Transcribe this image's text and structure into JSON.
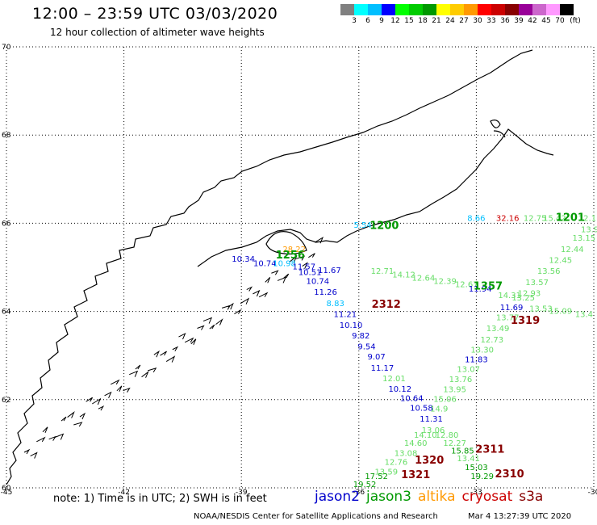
{
  "header": {
    "title": "12:00 – 23:59 UTC 03/03/2020",
    "subtitle": "12 hour collection of altimeter wave heights"
  },
  "scale": {
    "colors": [
      "#808080",
      "#00ffff",
      "#00bfff",
      "#0000ff",
      "#00ff00",
      "#00cc00",
      "#009900",
      "#ffff00",
      "#ffcc00",
      "#ff9900",
      "#ff0000",
      "#cc0000",
      "#880000",
      "#990099",
      "#cc66cc",
      "#ff99ff",
      "#000000"
    ],
    "labels": [
      "3",
      "6",
      "9",
      "12",
      "15",
      "18",
      "21",
      "24",
      "27",
      "30",
      "33",
      "36",
      "39",
      "42",
      "45",
      "70",
      "(ft)"
    ]
  },
  "axes": {
    "lon_labels": [
      "-45",
      "-42",
      "-39",
      "-36",
      "-33",
      "-30"
    ],
    "lat_labels": [
      "70",
      "68",
      "66",
      "64",
      "62",
      "60"
    ]
  },
  "legend": {
    "note": "note:  1) Time is in UTC; 2) SWH is in feet",
    "satellites": [
      {
        "name": "jason2",
        "color": "#0000cc"
      },
      {
        "name": "jason3",
        "color": "#009900"
      },
      {
        "name": "altika",
        "color": "#ff9900"
      },
      {
        "name": "cryosat",
        "color": "#cc0000"
      },
      {
        "name": "s3a",
        "color": "#880000"
      }
    ]
  },
  "footer": {
    "credit": "NOAA/NESDIS Center for Satellite Applications and Research",
    "date": "Mar  4 13:27:39 UTC 2020"
  },
  "map_data": {
    "time_labels": [
      {
        "text": "1200",
        "lon": -35.35,
        "lat": 65.87,
        "color": "#009900"
      },
      {
        "text": "1201",
        "lon": -30.6,
        "lat": 66.05,
        "color": "#009900"
      },
      {
        "text": "1357",
        "lon": -32.7,
        "lat": 64.5,
        "color": "#009900"
      },
      {
        "text": "1256",
        "lon": -37.75,
        "lat": 65.2,
        "color": "#009900"
      },
      {
        "text": "2312",
        "lon": -35.3,
        "lat": 64.08,
        "color": "#880000"
      },
      {
        "text": "1319",
        "lon": -31.75,
        "lat": 63.72,
        "color": "#880000"
      },
      {
        "text": "2311",
        "lon": -32.65,
        "lat": 60.8,
        "color": "#880000"
      },
      {
        "text": "1320",
        "lon": -34.2,
        "lat": 60.55,
        "color": "#880000"
      },
      {
        "text": "2310",
        "lon": -32.15,
        "lat": 60.24,
        "color": "#880000"
      },
      {
        "text": "1321",
        "lon": -34.55,
        "lat": 60.22,
        "color": "#880000"
      }
    ],
    "wave_heights": [
      {
        "v": "5.54",
        "lon": -35.9,
        "lat": 65.9,
        "color": "#00bfff"
      },
      {
        "v": "8.66",
        "lon": -33.0,
        "lat": 66.05,
        "color": "#00bfff"
      },
      {
        "v": "32.16",
        "lon": -32.2,
        "lat": 66.05,
        "color": "#cc0000"
      },
      {
        "v": "12.75",
        "lon": -31.5,
        "lat": 66.05,
        "color": "#66dd66"
      },
      {
        "v": "15.42",
        "lon": -31.0,
        "lat": 66.05,
        "color": "#66dd66"
      },
      {
        "v": "12.11",
        "lon": -30.1,
        "lat": 66.05,
        "color": "#66dd66"
      },
      {
        "v": "10.34",
        "lon": -38.95,
        "lat": 65.13,
        "color": "#0000cc"
      },
      {
        "v": "10.74",
        "lon": -38.4,
        "lat": 65.03,
        "color": "#0000cc"
      },
      {
        "v": "10.98",
        "lon": -37.9,
        "lat": 65.03,
        "color": "#00bfff"
      },
      {
        "v": "28.22",
        "lon": -37.65,
        "lat": 65.35,
        "color": "#ff9900"
      },
      {
        "v": "11.57",
        "lon": -37.4,
        "lat": 64.95,
        "color": "#0000cc"
      },
      {
        "v": "10.51",
        "lon": -37.25,
        "lat": 64.83,
        "color": "#0000cc"
      },
      {
        "v": "11.67",
        "lon": -36.75,
        "lat": 64.87,
        "color": "#0000cc"
      },
      {
        "v": "10.74",
        "lon": -37.05,
        "lat": 64.62,
        "color": "#0000cc"
      },
      {
        "v": "11.26",
        "lon": -36.85,
        "lat": 64.38,
        "color": "#0000cc"
      },
      {
        "v": "8.83",
        "lon": -36.6,
        "lat": 64.12,
        "color": "#00bfff"
      },
      {
        "v": "11.21",
        "lon": -36.35,
        "lat": 63.87,
        "color": "#0000cc"
      },
      {
        "v": "10.10",
        "lon": -36.2,
        "lat": 63.63,
        "color": "#0000cc"
      },
      {
        "v": "9.82",
        "lon": -35.95,
        "lat": 63.39,
        "color": "#0000cc"
      },
      {
        "v": "9.54",
        "lon": -35.8,
        "lat": 63.14,
        "color": "#0000cc"
      },
      {
        "v": "9.07",
        "lon": -35.55,
        "lat": 62.91,
        "color": "#0000cc"
      },
      {
        "v": "11.17",
        "lon": -35.4,
        "lat": 62.66,
        "color": "#0000cc"
      },
      {
        "v": "12.01",
        "lon": -35.1,
        "lat": 62.42,
        "color": "#66dd66"
      },
      {
        "v": "10.12",
        "lon": -34.95,
        "lat": 62.18,
        "color": "#0000cc"
      },
      {
        "v": "10.64",
        "lon": -34.65,
        "lat": 61.97,
        "color": "#0000cc"
      },
      {
        "v": "10.58",
        "lon": -34.4,
        "lat": 61.75,
        "color": "#0000cc"
      },
      {
        "v": "11.31",
        "lon": -34.15,
        "lat": 61.5,
        "color": "#0000cc"
      },
      {
        "v": "12.71",
        "lon": -35.4,
        "lat": 64.85,
        "color": "#66dd66"
      },
      {
        "v": "14.12",
        "lon": -34.85,
        "lat": 64.77,
        "color": "#66dd66"
      },
      {
        "v": "12.64",
        "lon": -34.35,
        "lat": 64.7,
        "color": "#66dd66"
      },
      {
        "v": "12.39",
        "lon": -33.8,
        "lat": 64.62,
        "color": "#66dd66"
      },
      {
        "v": "12.67",
        "lon": -33.25,
        "lat": 64.55,
        "color": "#66dd66"
      },
      {
        "v": "11.94",
        "lon": -32.9,
        "lat": 64.45,
        "color": "#0000cc"
      },
      {
        "v": "13.9",
        "lon": -30.1,
        "lat": 65.8,
        "color": "#66dd66"
      },
      {
        "v": "13.15",
        "lon": -30.25,
        "lat": 65.6,
        "color": "#66dd66"
      },
      {
        "v": "12.44",
        "lon": -30.55,
        "lat": 65.35,
        "color": "#66dd66"
      },
      {
        "v": "12.45",
        "lon": -30.85,
        "lat": 65.1,
        "color": "#66dd66"
      },
      {
        "v": "13.56",
        "lon": -31.15,
        "lat": 64.85,
        "color": "#66dd66"
      },
      {
        "v": "13.57",
        "lon": -31.45,
        "lat": 64.6,
        "color": "#66dd66"
      },
      {
        "v": "12.93",
        "lon": -31.65,
        "lat": 64.35,
        "color": "#66dd66"
      },
      {
        "v": "14.31",
        "lon": -32.15,
        "lat": 64.3,
        "color": "#66dd66"
      },
      {
        "v": "13.25",
        "lon": -31.8,
        "lat": 64.25,
        "color": "#66dd66"
      },
      {
        "v": "11.69",
        "lon": -32.1,
        "lat": 64.03,
        "color": "#0000cc"
      },
      {
        "v": "13.53",
        "lon": -31.35,
        "lat": 64.0,
        "color": "#66dd66"
      },
      {
        "v": "15.09",
        "lon": -30.85,
        "lat": 63.95,
        "color": "#66dd66"
      },
      {
        "v": "13.4",
        "lon": -30.25,
        "lat": 63.87,
        "color": "#66dd66"
      },
      {
        "v": "13.77",
        "lon": -32.2,
        "lat": 63.8,
        "color": "#66dd66"
      },
      {
        "v": "13.49",
        "lon": -32.45,
        "lat": 63.55,
        "color": "#66dd66"
      },
      {
        "v": "12.73",
        "lon": -32.6,
        "lat": 63.3,
        "color": "#66dd66"
      },
      {
        "v": "13.30",
        "lon": -32.85,
        "lat": 63.07,
        "color": "#66dd66"
      },
      {
        "v": "11.83",
        "lon": -33.0,
        "lat": 62.85,
        "color": "#0000cc"
      },
      {
        "v": "13.07",
        "lon": -33.2,
        "lat": 62.63,
        "color": "#66dd66"
      },
      {
        "v": "13.76",
        "lon": -33.4,
        "lat": 62.4,
        "color": "#66dd66"
      },
      {
        "v": "13.95",
        "lon": -33.55,
        "lat": 62.17,
        "color": "#66dd66"
      },
      {
        "v": "15.06",
        "lon": -33.8,
        "lat": 61.95,
        "color": "#66dd66"
      },
      {
        "v": "14.9",
        "lon": -33.95,
        "lat": 61.73,
        "color": "#66dd66"
      },
      {
        "v": "13.06",
        "lon": -34.1,
        "lat": 61.25,
        "color": "#66dd66"
      },
      {
        "v": "14.10",
        "lon": -34.3,
        "lat": 61.14,
        "color": "#66dd66"
      },
      {
        "v": "12.80",
        "lon": -33.75,
        "lat": 61.14,
        "color": "#66dd66"
      },
      {
        "v": "14.60",
        "lon": -34.55,
        "lat": 60.95,
        "color": "#66dd66"
      },
      {
        "v": "12.27",
        "lon": -33.55,
        "lat": 60.95,
        "color": "#66dd66"
      },
      {
        "v": "13.08",
        "lon": -34.8,
        "lat": 60.72,
        "color": "#66dd66"
      },
      {
        "v": "15.85",
        "lon": -33.35,
        "lat": 60.78,
        "color": "#009900"
      },
      {
        "v": "12.76",
        "lon": -35.05,
        "lat": 60.52,
        "color": "#66dd66"
      },
      {
        "v": "13.41",
        "lon": -33.2,
        "lat": 60.6,
        "color": "#66dd66"
      },
      {
        "v": "13.59",
        "lon": -35.3,
        "lat": 60.3,
        "color": "#66dd66"
      },
      {
        "v": "15.03",
        "lon": -33.0,
        "lat": 60.4,
        "color": "#009900"
      },
      {
        "v": "17.52",
        "lon": -35.55,
        "lat": 60.2,
        "color": "#009900"
      },
      {
        "v": "19.29",
        "lon": -32.85,
        "lat": 60.2,
        "color": "#009900"
      },
      {
        "v": "19.52",
        "lon": -35.85,
        "lat": 60.02,
        "color": "#009900"
      }
    ]
  }
}
